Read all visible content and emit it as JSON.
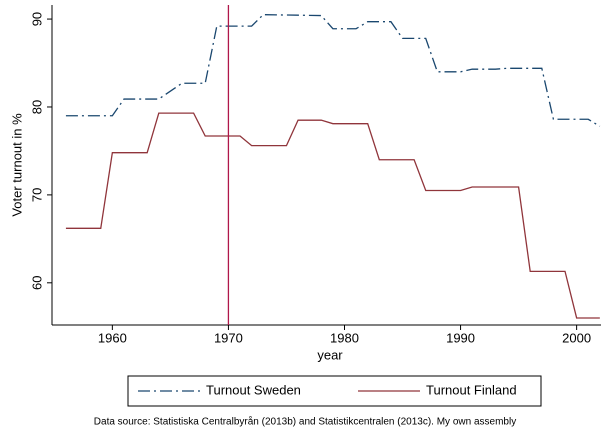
{
  "chart_data": {
    "type": "line",
    "x_label": "year",
    "y_label": "Voter turnout in %",
    "xlim": [
      1954.8,
      2002.1
    ],
    "xticks": [
      1960,
      1970,
      1980,
      1990,
      2000
    ],
    "ylim": [
      55.2,
      91.6
    ],
    "yticks": [
      60,
      70,
      80,
      90
    ],
    "reference_line_x": 1970,
    "reference_line_color": "#b0174a",
    "series": [
      {
        "name": "Turnout Sweden",
        "color": "#1a476f",
        "dash": "dash-dot",
        "x": [
          1956,
          1960,
          1961,
          1964,
          1966,
          1968,
          1969,
          1972,
          1973,
          1978,
          1979,
          1981,
          1982,
          1984,
          1985,
          1987,
          1988,
          1990,
          1991,
          1993,
          1994,
          1997,
          1998,
          2001,
          2002
        ],
        "values": [
          79.0,
          79.0,
          80.9,
          80.9,
          82.7,
          82.7,
          89.2,
          89.2,
          90.5,
          90.4,
          88.9,
          88.9,
          89.7,
          89.7,
          87.8,
          87.8,
          84.0,
          84.0,
          84.3,
          84.3,
          84.4,
          84.4,
          78.6,
          78.6,
          77.8
        ]
      },
      {
        "name": "Turnout Finland",
        "color": "#90353b",
        "dash": "solid",
        "x": [
          1956,
          1959,
          1960,
          1963,
          1964,
          1967,
          1968,
          1971,
          1972,
          1975,
          1976,
          1978,
          1979,
          1982,
          1983,
          1986,
          1987,
          1990,
          1991,
          1995,
          1996,
          1999,
          2000,
          2002
        ],
        "values": [
          66.2,
          66.2,
          74.8,
          74.8,
          79.3,
          79.3,
          76.7,
          76.7,
          75.6,
          75.6,
          78.5,
          78.5,
          78.1,
          78.1,
          74.0,
          74.0,
          70.5,
          70.5,
          70.9,
          70.9,
          61.3,
          61.3,
          56.0,
          56.0
        ]
      }
    ],
    "note": "Data source: Statistiska Centralbyrån (2013b) and Statistikcentralen (2013c). My own assembly"
  }
}
